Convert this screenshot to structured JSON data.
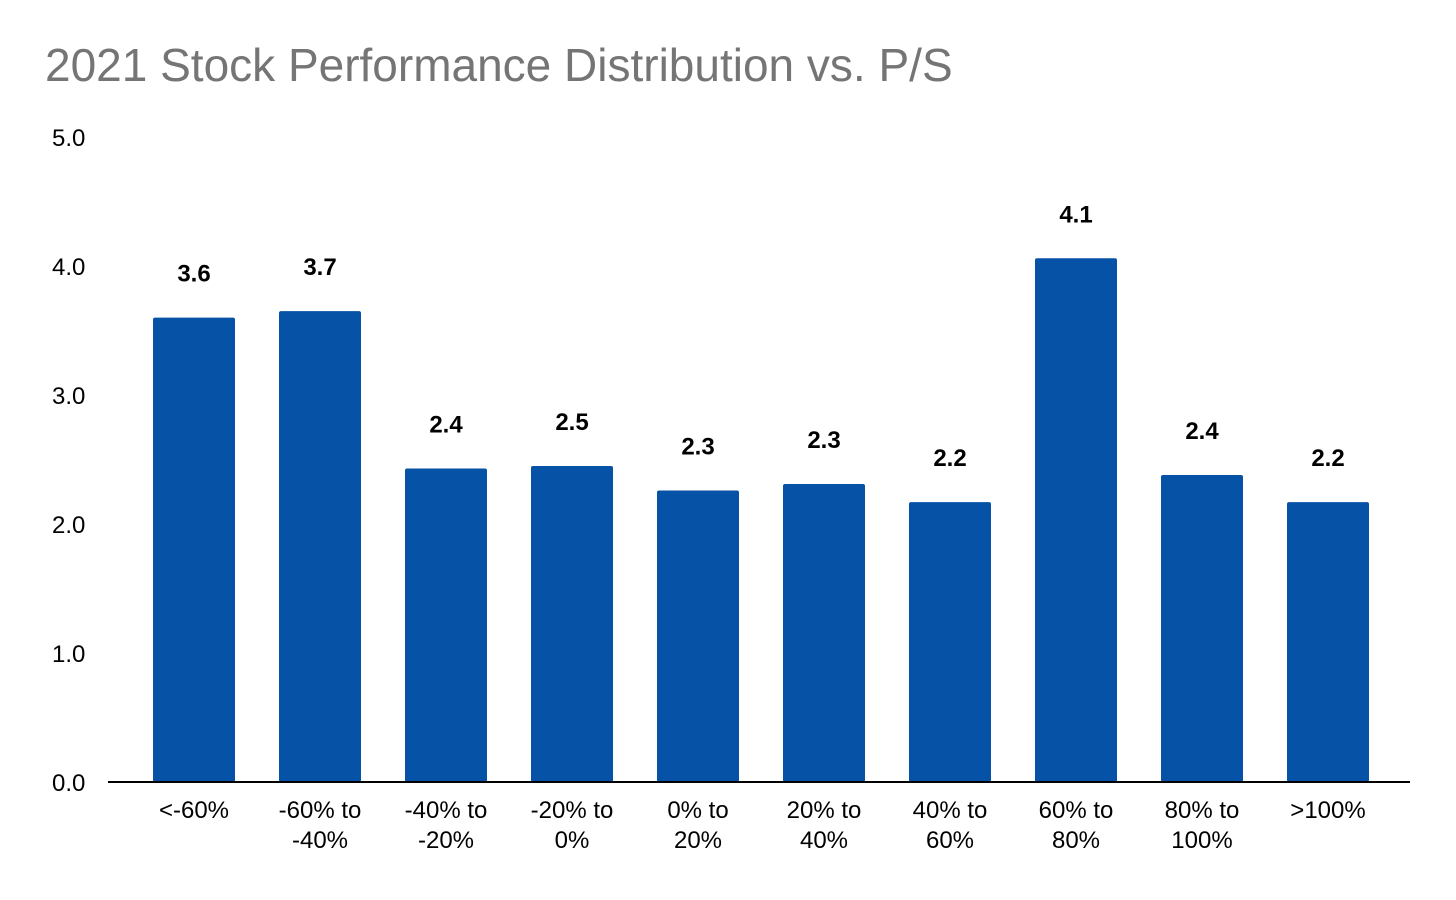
{
  "chart_data": {
    "type": "bar",
    "title": "2021 Stock Performance Distribution vs. P/S",
    "xlabel": "",
    "ylabel": "",
    "categories": [
      [
        "<-60%"
      ],
      [
        "-60% to",
        "-40%"
      ],
      [
        "-40% to",
        "-20%"
      ],
      [
        "-20% to",
        "0%"
      ],
      [
        "0% to",
        "20%"
      ],
      [
        "20% to",
        "40%"
      ],
      [
        "40% to",
        "60%"
      ],
      [
        "60% to",
        "80%"
      ],
      [
        "80% to",
        "100%"
      ],
      [
        ">100%"
      ]
    ],
    "values": [
      3.6,
      3.65,
      2.43,
      2.45,
      2.26,
      2.31,
      2.17,
      4.06,
      2.38,
      2.17
    ],
    "data_labels": [
      "3.6",
      "3.7",
      "2.4",
      "2.5",
      "2.3",
      "2.3",
      "2.2",
      "4.1",
      "2.4",
      "2.2"
    ],
    "y_ticks": [
      "0.0",
      "1.0",
      "2.0",
      "3.0",
      "4.0",
      "5.0"
    ],
    "ylim": [
      0,
      5
    ],
    "grid": false,
    "legend": "none",
    "colors": {
      "bar": "#0552a6",
      "title": "#757575",
      "axis": "#000000",
      "text": "#000000"
    }
  }
}
